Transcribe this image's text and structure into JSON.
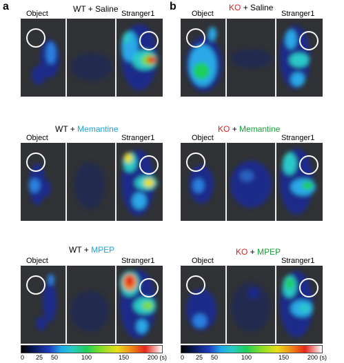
{
  "panels": [
    {
      "letter": "a",
      "rows": [
        {
          "genotype": "WT",
          "treatment": "Saline",
          "treatment_color": "#000000",
          "left_label": "Object",
          "right_label": "Stranger1"
        },
        {
          "genotype": "WT",
          "treatment": "Memantine",
          "treatment_color": "#1aa3e0",
          "left_label": "Object",
          "right_label": "Stranger1"
        },
        {
          "genotype": "WT",
          "treatment": "MPEP",
          "treatment_color": "#1aa3e0",
          "left_label": "Object",
          "right_label": "Stranger1"
        }
      ],
      "genotype_color": "#000000"
    },
    {
      "letter": "b",
      "rows": [
        {
          "genotype": "KO",
          "treatment": "Saline",
          "treatment_color": "#000000",
          "left_label": "Object",
          "right_label": "Stranger1"
        },
        {
          "genotype": "KO",
          "treatment": "Memantine",
          "treatment_color": "#1a9e3a",
          "left_label": "Object",
          "right_label": "Stranger1"
        },
        {
          "genotype": "KO",
          "treatment": "MPEP",
          "treatment_color": "#1a9e3a",
          "left_label": "Object",
          "right_label": "Stranger1"
        }
      ],
      "genotype_color": "#e01b1b"
    }
  ],
  "join": "+",
  "colorbar": {
    "ticks": [
      "0",
      "25",
      "50",
      "100",
      "150",
      "200 (s)"
    ],
    "tick_values": [
      0,
      25,
      50,
      100,
      150,
      200
    ],
    "max": 200,
    "unit": "(s)"
  }
}
